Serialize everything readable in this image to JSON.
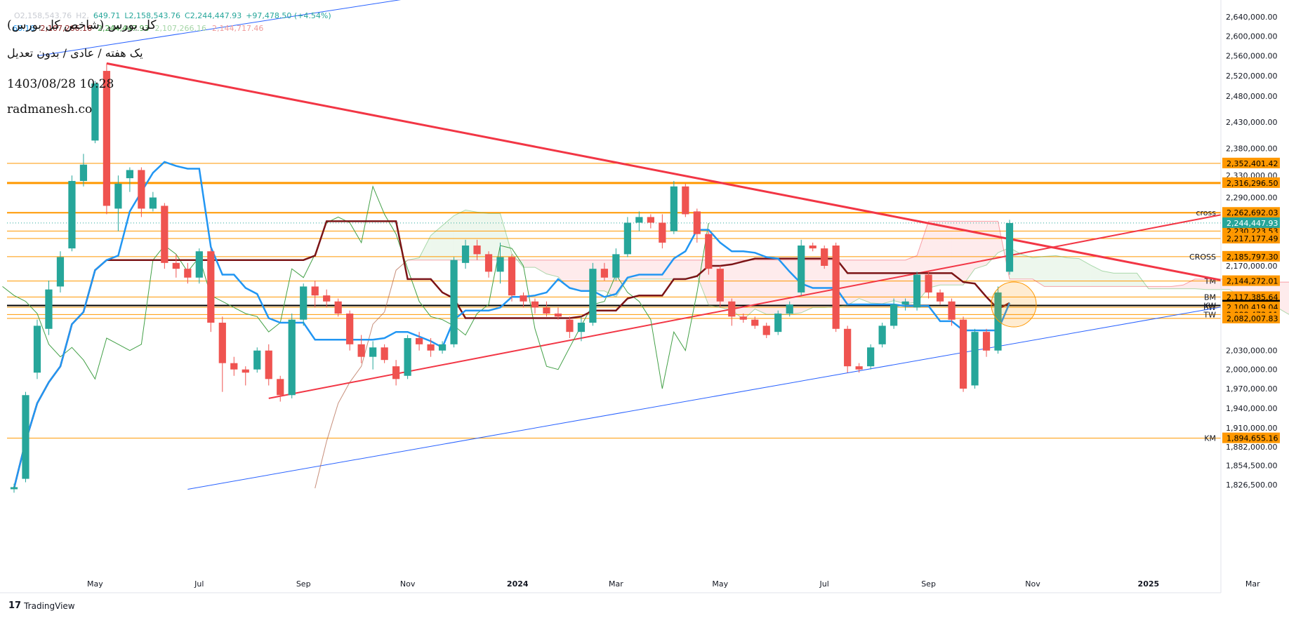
{
  "header": {
    "title_line1": "کل بورس (شاخص کل بورس)",
    "title_line2": "یک هفته / عادی / بدون تعدیل",
    "timestamp": "1403/08/28 10:28",
    "site": "radmanesh.co",
    "ohlc": {
      "open_fragment": "O2,158,543.76",
      "high_fragment": "H2,",
      "low": "L2,158,543.76",
      "close": "C2,244,447.93",
      "change": "+97,478.50 (+4.54%)",
      "extra": "649.71"
    },
    "indicators": [
      {
        "text": "66.16",
        "color": "#2196f3"
      },
      {
        "text": "2,107,266.16",
        "color": "#8b1a1a"
      },
      {
        "text": "2,244,447.93",
        "color": "#43a047"
      },
      {
        "text": "2,107,266.16",
        "color": "#a5d6a7"
      },
      {
        "text": "2,144,717.46",
        "color": "#ef9a9a"
      }
    ]
  },
  "watermark": "TradingView",
  "colors": {
    "up": "#26a69a",
    "down": "#ef5350",
    "tenkan": "#2196f3",
    "kijun": "#7b1416",
    "chikou": "#43a047",
    "trend_red": "#f23645",
    "trend_blue": "#2962ff",
    "level": "#ff9800",
    "current": "#000000"
  },
  "chart_data": {
    "type": "candlestick",
    "y_axis": {
      "scale": "log",
      "ticks": [
        "2,640,000.00",
        "2,600,000.00",
        "2,560,000.00",
        "2,520,000.00",
        "2,480,000.00",
        "2,430,000.00",
        "2,380,000.00",
        "2,330,000.00",
        "2,290,000.00",
        "2,170,000.00",
        "2,030,000.00",
        "2,000,000.00",
        "1,970,000.00",
        "1,940,000.00",
        "1,910,000.00",
        "1,882,000.00",
        "1,854,500.00",
        "1,826,500.00"
      ]
    },
    "x_axis": {
      "ticks": [
        "Mar",
        "May",
        "Jul",
        "Sep",
        "Nov",
        "2024",
        "Mar",
        "May",
        "Jul",
        "Sep",
        "Nov",
        "2025",
        "Mar"
      ]
    },
    "levels": [
      {
        "value": 2352401.42,
        "label": "2,352,401.42",
        "name": "",
        "style": "thin"
      },
      {
        "value": 2316296.5,
        "label": "2,316,296.50",
        "name": "",
        "style": "thick"
      },
      {
        "value": 2262692.03,
        "label": "2,262,692.03",
        "name": "cross",
        "style": "medium"
      },
      {
        "value": 2230223.53,
        "label": "2,230,223.53",
        "name": "",
        "style": "thin"
      },
      {
        "value": 2217177.49,
        "label": "2,217,177.49",
        "name": "",
        "style": "thin"
      },
      {
        "value": 2185797.3,
        "label": "2,185,797.30",
        "name": "CROSS",
        "style": "thin"
      },
      {
        "value": 2144272.01,
        "label": "2,144,272.01",
        "name": "TM",
        "style": "thin"
      },
      {
        "value": 2117385.64,
        "label": "2,117,385.64",
        "name": "BM",
        "style": "thin"
      },
      {
        "value": 2103318.0,
        "label": "2,103,318.00",
        "name": "KW",
        "style": "current"
      },
      {
        "value": 2100419.04,
        "label": "2,100,419.04",
        "name": "BW",
        "style": "thin"
      },
      {
        "value": 2088473.11,
        "label": "2,088,473.11",
        "name": "TW",
        "style": "thin"
      },
      {
        "value": 2082007.83,
        "label": "2,082,007.83",
        "name": "",
        "style": "thin"
      },
      {
        "value": 1894655.16,
        "label": "1,894,655.16",
        "name": "KM",
        "style": "thin"
      }
    ],
    "last_price": {
      "value": 2244447.93,
      "label": "2,244,447.93"
    },
    "candles": [
      {
        "o": 1820000,
        "h": 1828000,
        "l": 1815000,
        "c": 1823000
      },
      {
        "o": 1835000,
        "h": 1965000,
        "l": 1830000,
        "c": 1960000
      },
      {
        "o": 1995000,
        "h": 2080000,
        "l": 1985000,
        "c": 2070000
      },
      {
        "o": 2065000,
        "h": 2145000,
        "l": 2055000,
        "c": 2130000
      },
      {
        "o": 2135000,
        "h": 2195000,
        "l": 2125000,
        "c": 2185000
      },
      {
        "o": 2200000,
        "h": 2330000,
        "l": 2195000,
        "c": 2320000
      },
      {
        "o": 2320000,
        "h": 2370000,
        "l": 2310000,
        "c": 2350000
      },
      {
        "o": 2395000,
        "h": 2510000,
        "l": 2390000,
        "c": 2505000
      },
      {
        "o": 2530000,
        "h": 2545000,
        "l": 2260000,
        "c": 2275000
      },
      {
        "o": 2270000,
        "h": 2330000,
        "l": 2230000,
        "c": 2315000
      },
      {
        "o": 2325000,
        "h": 2345000,
        "l": 2300000,
        "c": 2340000
      },
      {
        "o": 2340000,
        "h": 2345000,
        "l": 2255000,
        "c": 2270000
      },
      {
        "o": 2270000,
        "h": 2300000,
        "l": 2265000,
        "c": 2290000
      },
      {
        "o": 2275000,
        "h": 2280000,
        "l": 2165000,
        "c": 2175000
      },
      {
        "o": 2175000,
        "h": 2190000,
        "l": 2150000,
        "c": 2165000
      },
      {
        "o": 2165000,
        "h": 2175000,
        "l": 2140000,
        "c": 2150000
      },
      {
        "o": 2150000,
        "h": 2200000,
        "l": 2140000,
        "c": 2195000
      },
      {
        "o": 2195000,
        "h": 2200000,
        "l": 2060000,
        "c": 2075000
      },
      {
        "o": 2075000,
        "h": 2085000,
        "l": 1965000,
        "c": 2010000
      },
      {
        "o": 2010000,
        "h": 2020000,
        "l": 1990000,
        "c": 2000000
      },
      {
        "o": 2000000,
        "h": 2005000,
        "l": 1975000,
        "c": 1995000
      },
      {
        "o": 2000000,
        "h": 2035000,
        "l": 1995000,
        "c": 2030000
      },
      {
        "o": 2030000,
        "h": 2040000,
        "l": 1975000,
        "c": 1985000
      },
      {
        "o": 1985000,
        "h": 1990000,
        "l": 1950000,
        "c": 1960000
      },
      {
        "o": 1960000,
        "h": 2090000,
        "l": 1955000,
        "c": 2080000
      },
      {
        "o": 2080000,
        "h": 2140000,
        "l": 2070000,
        "c": 2135000
      },
      {
        "o": 2135000,
        "h": 2145000,
        "l": 2100000,
        "c": 2120000
      },
      {
        "o": 2120000,
        "h": 2130000,
        "l": 2100000,
        "c": 2110000
      },
      {
        "o": 2110000,
        "h": 2115000,
        "l": 2085000,
        "c": 2090000
      },
      {
        "o": 2090000,
        "h": 2095000,
        "l": 2030000,
        "c": 2040000
      },
      {
        "o": 2040000,
        "h": 2055000,
        "l": 2010000,
        "c": 2020000
      },
      {
        "o": 2020000,
        "h": 2045000,
        "l": 2000000,
        "c": 2035000
      },
      {
        "o": 2035000,
        "h": 2040000,
        "l": 2010000,
        "c": 2015000
      },
      {
        "o": 2005000,
        "h": 2015000,
        "l": 1975000,
        "c": 1985000
      },
      {
        "o": 1990000,
        "h": 2055000,
        "l": 1985000,
        "c": 2050000
      },
      {
        "o": 2050000,
        "h": 2060000,
        "l": 2030000,
        "c": 2040000
      },
      {
        "o": 2040000,
        "h": 2050000,
        "l": 2020000,
        "c": 2030000
      },
      {
        "o": 2030000,
        "h": 2045000,
        "l": 2025000,
        "c": 2040000
      },
      {
        "o": 2040000,
        "h": 2185000,
        "l": 2035000,
        "c": 2180000
      },
      {
        "o": 2175000,
        "h": 2215000,
        "l": 2165000,
        "c": 2205000
      },
      {
        "o": 2205000,
        "h": 2215000,
        "l": 2180000,
        "c": 2190000
      },
      {
        "o": 2190000,
        "h": 2195000,
        "l": 2150000,
        "c": 2160000
      },
      {
        "o": 2160000,
        "h": 2210000,
        "l": 2140000,
        "c": 2185000
      },
      {
        "o": 2185000,
        "h": 2190000,
        "l": 2110000,
        "c": 2120000
      },
      {
        "o": 2120000,
        "h": 2125000,
        "l": 2100000,
        "c": 2110000
      },
      {
        "o": 2110000,
        "h": 2115000,
        "l": 2090000,
        "c": 2100000
      },
      {
        "o": 2100000,
        "h": 2110000,
        "l": 2085000,
        "c": 2090000
      },
      {
        "o": 2090000,
        "h": 2100000,
        "l": 2080000,
        "c": 2085000
      },
      {
        "o": 2080000,
        "h": 2085000,
        "l": 2050000,
        "c": 2060000
      },
      {
        "o": 2060000,
        "h": 2085000,
        "l": 2045000,
        "c": 2075000
      },
      {
        "o": 2075000,
        "h": 2175000,
        "l": 2070000,
        "c": 2165000
      },
      {
        "o": 2165000,
        "h": 2175000,
        "l": 2145000,
        "c": 2150000
      },
      {
        "o": 2150000,
        "h": 2200000,
        "l": 2145000,
        "c": 2190000
      },
      {
        "o": 2190000,
        "h": 2255000,
        "l": 2185000,
        "c": 2245000
      },
      {
        "o": 2245000,
        "h": 2265000,
        "l": 2230000,
        "c": 2255000
      },
      {
        "o": 2255000,
        "h": 2260000,
        "l": 2235000,
        "c": 2245000
      },
      {
        "o": 2245000,
        "h": 2260000,
        "l": 2200000,
        "c": 2210000
      },
      {
        "o": 2230000,
        "h": 2320000,
        "l": 2225000,
        "c": 2310000
      },
      {
        "o": 2310000,
        "h": 2315000,
        "l": 2255000,
        "c": 2260000
      },
      {
        "o": 2265000,
        "h": 2270000,
        "l": 2210000,
        "c": 2225000
      },
      {
        "o": 2225000,
        "h": 2230000,
        "l": 2155000,
        "c": 2165000
      },
      {
        "o": 2165000,
        "h": 2170000,
        "l": 2100000,
        "c": 2110000
      },
      {
        "o": 2110000,
        "h": 2115000,
        "l": 2070000,
        "c": 2085000
      },
      {
        "o": 2085000,
        "h": 2090000,
        "l": 2075000,
        "c": 2080000
      },
      {
        "o": 2080000,
        "h": 2085000,
        "l": 2065000,
        "c": 2070000
      },
      {
        "o": 2070000,
        "h": 2075000,
        "l": 2050000,
        "c": 2055000
      },
      {
        "o": 2060000,
        "h": 2095000,
        "l": 2055000,
        "c": 2090000
      },
      {
        "o": 2090000,
        "h": 2110000,
        "l": 2085000,
        "c": 2105000
      },
      {
        "o": 2125000,
        "h": 2215000,
        "l": 2120000,
        "c": 2205000
      },
      {
        "o": 2205000,
        "h": 2210000,
        "l": 2195000,
        "c": 2200000
      },
      {
        "o": 2200000,
        "h": 2205000,
        "l": 2165000,
        "c": 2170000
      },
      {
        "o": 2205000,
        "h": 2210000,
        "l": 2060000,
        "c": 2065000
      },
      {
        "o": 2065000,
        "h": 2070000,
        "l": 1995000,
        "c": 2005000
      },
      {
        "o": 2005000,
        "h": 2010000,
        "l": 1995000,
        "c": 2000000
      },
      {
        "o": 2005000,
        "h": 2040000,
        "l": 2000000,
        "c": 2035000
      },
      {
        "o": 2040000,
        "h": 2075000,
        "l": 2035000,
        "c": 2070000
      },
      {
        "o": 2070000,
        "h": 2115000,
        "l": 2065000,
        "c": 2105000
      },
      {
        "o": 2105000,
        "h": 2115000,
        "l": 2095000,
        "c": 2110000
      },
      {
        "o": 2100000,
        "h": 2160000,
        "l": 2095000,
        "c": 2155000
      },
      {
        "o": 2155000,
        "h": 2160000,
        "l": 2115000,
        "c": 2125000
      },
      {
        "o": 2125000,
        "h": 2130000,
        "l": 2105000,
        "c": 2110000
      },
      {
        "o": 2110000,
        "h": 2115000,
        "l": 2070000,
        "c": 2080000
      },
      {
        "o": 2080000,
        "h": 2085000,
        "l": 1965000,
        "c": 1970000
      },
      {
        "o": 1975000,
        "h": 2065000,
        "l": 1970000,
        "c": 2060000
      },
      {
        "o": 2060000,
        "h": 2065000,
        "l": 2020000,
        "c": 2030000
      },
      {
        "o": 2030000,
        "h": 2135000,
        "l": 2025000,
        "c": 2125000
      },
      {
        "o": 2160000,
        "h": 2250000,
        "l": 2155000,
        "c": 2244447.93
      }
    ]
  }
}
